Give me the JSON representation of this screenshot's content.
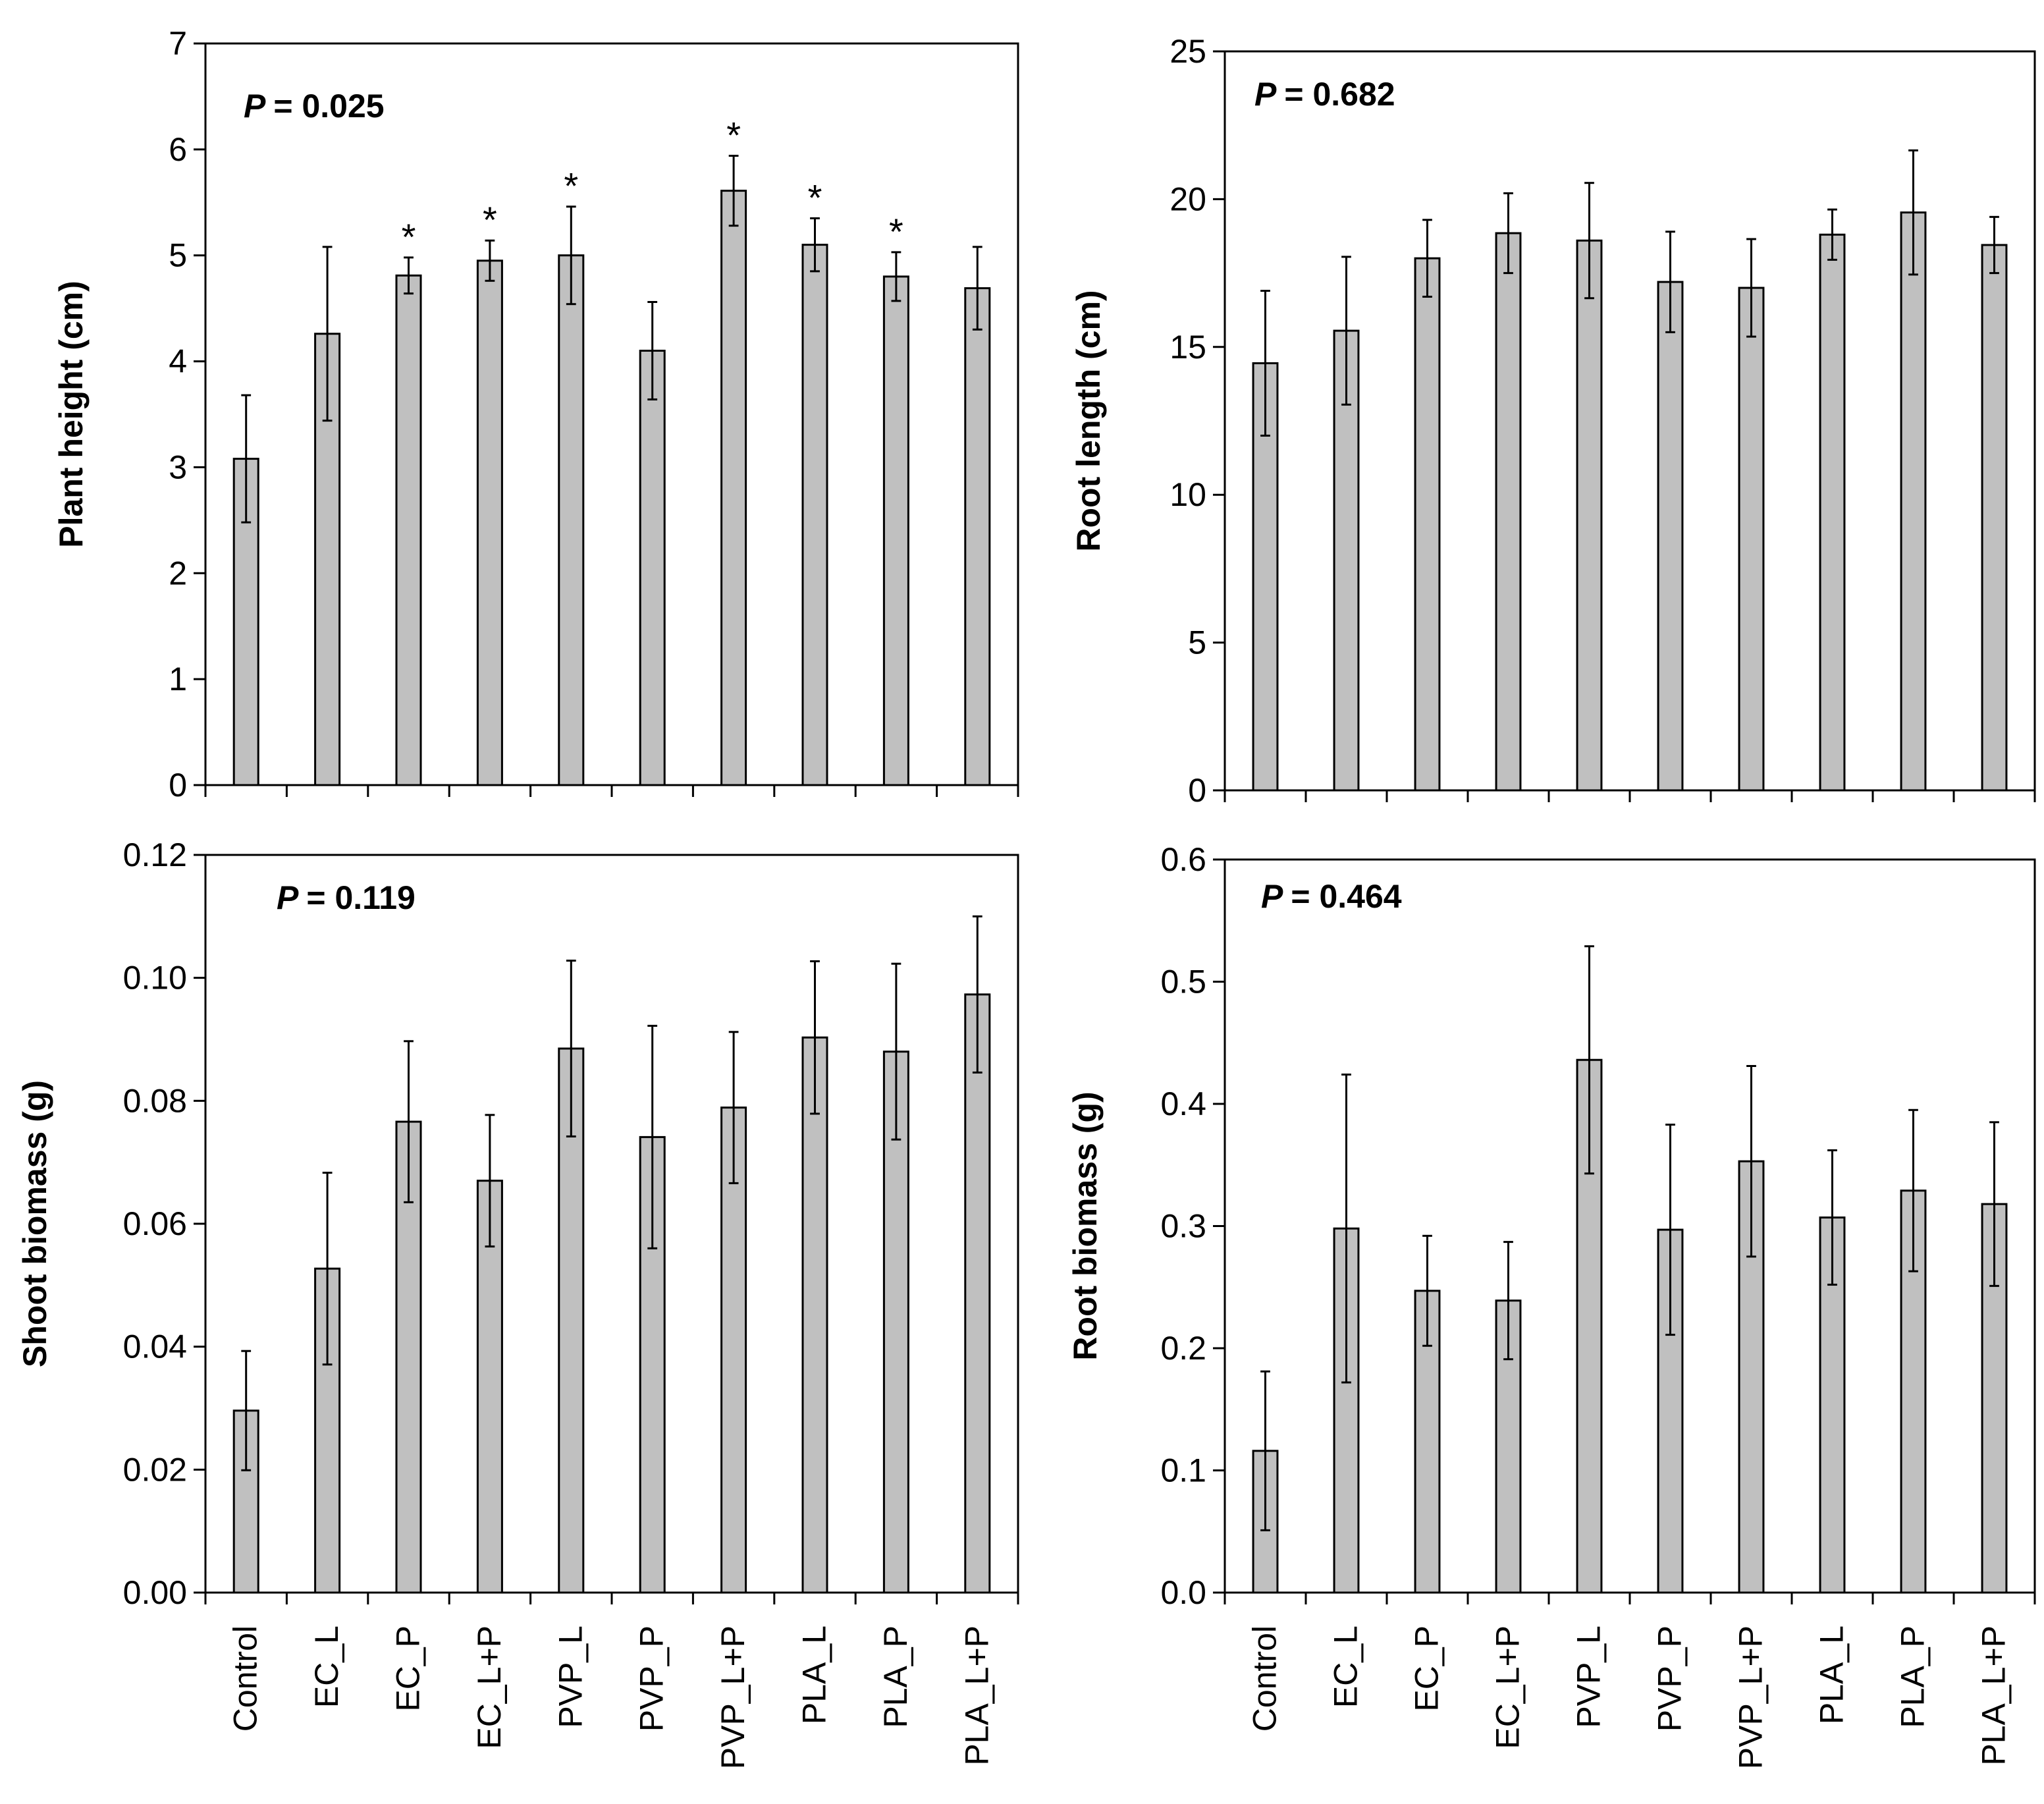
{
  "chart_data": [
    {
      "id": "plant-height",
      "type": "bar",
      "ylabel": "Plant height (cm)",
      "p_prefix": "P",
      "p_value": "= 0.025",
      "ylim": [
        0,
        7
      ],
      "yticks": [
        0,
        1,
        2,
        3,
        4,
        5,
        6,
        7
      ],
      "ytick_labels": [
        "0",
        "1",
        "2",
        "3",
        "4",
        "5",
        "6",
        "7"
      ],
      "categories": [
        "Control",
        "EC_L",
        "EC_P",
        "EC_L+P",
        "PVP_L",
        "PVP_P",
        "PVP_L+P",
        "PLA_L",
        "PLA_P",
        "PLA_L+P"
      ],
      "values": [
        3.08,
        4.26,
        4.81,
        4.95,
        5.0,
        4.1,
        5.61,
        5.1,
        4.8,
        4.69
      ],
      "errors": [
        0.6,
        0.82,
        0.17,
        0.19,
        0.46,
        0.46,
        0.33,
        0.25,
        0.23,
        0.39
      ],
      "markers": [
        "",
        "",
        "*",
        "*",
        "*",
        "",
        "*",
        "*",
        "*",
        ""
      ],
      "show_category_labels": false
    },
    {
      "id": "root-length",
      "type": "bar",
      "ylabel": "Root length (cm)",
      "p_prefix": "P",
      "p_value": "= 0.682",
      "ylim": [
        0,
        25
      ],
      "yticks": [
        0,
        5,
        10,
        15,
        20,
        25
      ],
      "ytick_labels": [
        "0",
        "5",
        "10",
        "15",
        "20",
        "25"
      ],
      "categories": [
        "Control",
        "EC_L",
        "EC_P",
        "EC_L+P",
        "PVP_L",
        "PVP_P",
        "PVP_L+P",
        "PLA_L",
        "PLA_P",
        "PLA_L+P"
      ],
      "values": [
        14.45,
        15.55,
        18.0,
        18.85,
        18.6,
        17.2,
        17.0,
        18.8,
        19.55,
        18.45
      ],
      "errors": [
        2.45,
        2.5,
        1.3,
        1.35,
        1.95,
        1.7,
        1.65,
        0.85,
        2.1,
        0.95
      ],
      "markers": [
        "",
        "",
        "",
        "",
        "",
        "",
        "",
        "",
        "",
        ""
      ],
      "show_category_labels": false
    },
    {
      "id": "shoot-biomass",
      "type": "bar",
      "ylabel": "Shoot biomass  (g)",
      "p_prefix": "P",
      "p_value": "= 0.119",
      "ylim": [
        0,
        0.12
      ],
      "yticks": [
        0,
        0.02,
        0.04,
        0.06,
        0.08,
        0.1,
        0.12
      ],
      "ytick_labels": [
        "0.00",
        "0.02",
        "0.04",
        "0.06",
        "0.08",
        "0.10",
        "0.12"
      ],
      "categories": [
        "Control",
        "EC_L",
        "EC_P",
        "EC_L+P",
        "PVP_L",
        "PVP_P",
        "PVP_L+P",
        "PLA_L",
        "PLA_P",
        "PLA_L+P"
      ],
      "values": [
        0.0296,
        0.0527,
        0.0766,
        0.067,
        0.0885,
        0.0741,
        0.0789,
        0.0903,
        0.088,
        0.0973
      ],
      "errors": [
        0.0097,
        0.0156,
        0.0131,
        0.0107,
        0.0143,
        0.0181,
        0.0123,
        0.0124,
        0.0143,
        0.0127
      ],
      "markers": [
        "",
        "",
        "",
        "",
        "",
        "",
        "",
        "",
        "",
        ""
      ],
      "show_category_labels": true
    },
    {
      "id": "root-biomass",
      "type": "bar",
      "ylabel": "Root  biomass  (g)",
      "p_prefix": "P",
      "p_value": "= 0.464",
      "ylim": [
        0,
        0.6
      ],
      "yticks": [
        0,
        0.1,
        0.2,
        0.3,
        0.4,
        0.5,
        0.6
      ],
      "ytick_labels": [
        "0.0",
        "0.1",
        "0.2",
        "0.3",
        "0.4",
        "0.5",
        "0.6"
      ],
      "categories": [
        "Control",
        "EC_L",
        "EC_P",
        "EC_L+P",
        "PVP_L",
        "PVP_P",
        "PVP_L+P",
        "PLA_L",
        "PLA_P",
        "PLA_L+P"
      ],
      "values": [
        0.116,
        0.298,
        0.247,
        0.239,
        0.436,
        0.297,
        0.353,
        0.307,
        0.329,
        0.318
      ],
      "errors": [
        0.065,
        0.126,
        0.045,
        0.048,
        0.093,
        0.086,
        0.078,
        0.055,
        0.066,
        0.067
      ],
      "markers": [
        "",
        "",
        "",
        "",
        "",
        "",
        "",
        "",
        "",
        ""
      ],
      "show_category_labels": true
    }
  ]
}
